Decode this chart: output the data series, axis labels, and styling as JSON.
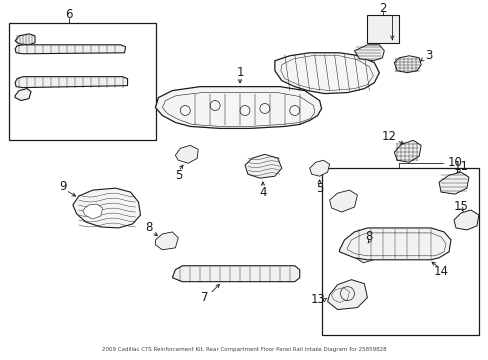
{
  "bg_color": "#ffffff",
  "line_color": "#1a1a1a",
  "fig_width": 4.89,
  "fig_height": 3.6,
  "dpi": 100,
  "lw_main": 0.9,
  "lw_detail": 0.5,
  "lw_thin": 0.3
}
